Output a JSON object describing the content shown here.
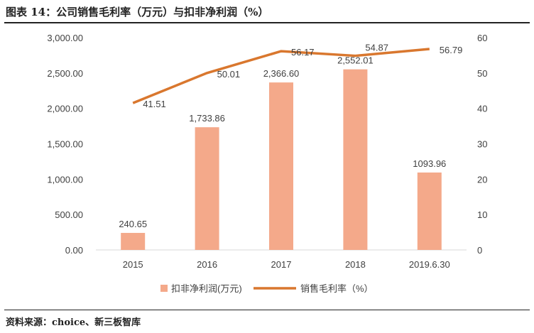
{
  "title": "图表 14：公司销售毛利率（万元）与扣非净利润（%）",
  "source": "资料来源：choice、新三板智库",
  "chart_data": {
    "type": "bar+line",
    "categories": [
      "2015",
      "2016",
      "2017",
      "2018",
      "2019.6.30"
    ],
    "series": [
      {
        "name": "扣非净利润(万元)",
        "type": "bar",
        "axis": "left",
        "color": "#F4A98A",
        "values": [
          240.65,
          1733.86,
          2366.6,
          2552.01,
          1093.96
        ],
        "labels": [
          "240.65",
          "1,733.86",
          "2,366.60",
          "2,552.01",
          "1093.96"
        ]
      },
      {
        "name": "销售毛利率（%）",
        "type": "line",
        "axis": "right",
        "color": "#D9772E",
        "values": [
          41.51,
          50.01,
          56.17,
          54.87,
          56.79
        ],
        "labels": [
          "41.51",
          "50.01",
          "56.17",
          "54.87",
          "56.79"
        ]
      }
    ],
    "left_axis": {
      "min": 0,
      "max": 3000,
      "ticks": [
        "0.00",
        "500.00",
        "1,000.00",
        "1,500.00",
        "2,000.00",
        "2,500.00",
        "3,000.00"
      ]
    },
    "right_axis": {
      "min": 0,
      "max": 60,
      "ticks": [
        "0",
        "10",
        "20",
        "30",
        "40",
        "50",
        "60"
      ]
    },
    "grid": false,
    "legend": "bottom"
  }
}
